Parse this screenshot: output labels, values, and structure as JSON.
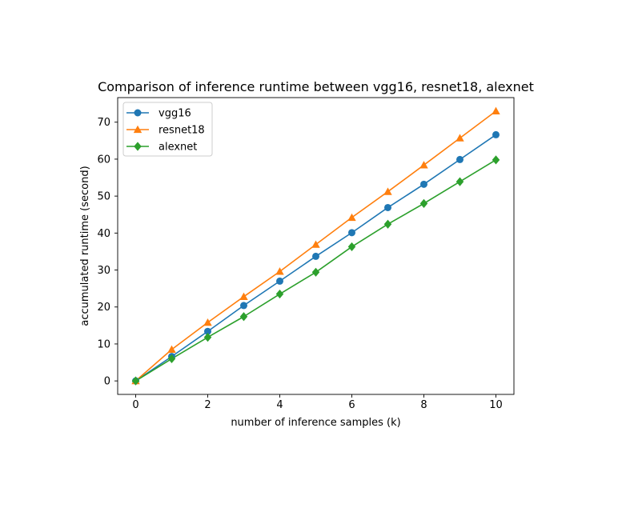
{
  "chart_data": {
    "type": "line",
    "title": "Comparison of inference runtime between vgg16, resnet18, alexnet",
    "xlabel": "number of inference samples (k)",
    "ylabel": "accumulated runtime (second)",
    "x": [
      0,
      1,
      2,
      3,
      4,
      5,
      6,
      7,
      8,
      9,
      10
    ],
    "xlim": [
      -0.5,
      10.5
    ],
    "ylim": [
      -3.65,
      76.65
    ],
    "xticks": [
      0,
      2,
      4,
      6,
      8,
      10
    ],
    "xtick_labels": [
      "0",
      "2",
      "4",
      "6",
      "8",
      "10"
    ],
    "yticks": [
      0,
      10,
      20,
      30,
      40,
      50,
      60,
      70
    ],
    "ytick_labels": [
      "0",
      "10",
      "20",
      "30",
      "40",
      "50",
      "60",
      "70"
    ],
    "grid": false,
    "legend_position": "top-left",
    "series": [
      {
        "name": "vgg16",
        "marker": "circle",
        "color": "#1f77b4",
        "values": [
          0,
          6.6,
          13.4,
          20.4,
          27.0,
          33.7,
          40.1,
          46.9,
          53.2,
          59.9,
          66.6
        ]
      },
      {
        "name": "resnet18",
        "marker": "triangle",
        "color": "#ff7f0e",
        "values": [
          0,
          8.5,
          15.8,
          22.8,
          29.6,
          36.9,
          44.2,
          51.2,
          58.4,
          65.7,
          73.0
        ]
      },
      {
        "name": "alexnet",
        "marker": "diamond",
        "color": "#2ca02c",
        "values": [
          0,
          6.0,
          11.8,
          17.4,
          23.5,
          29.4,
          36.3,
          42.4,
          48.0,
          53.9,
          59.8
        ]
      }
    ]
  }
}
